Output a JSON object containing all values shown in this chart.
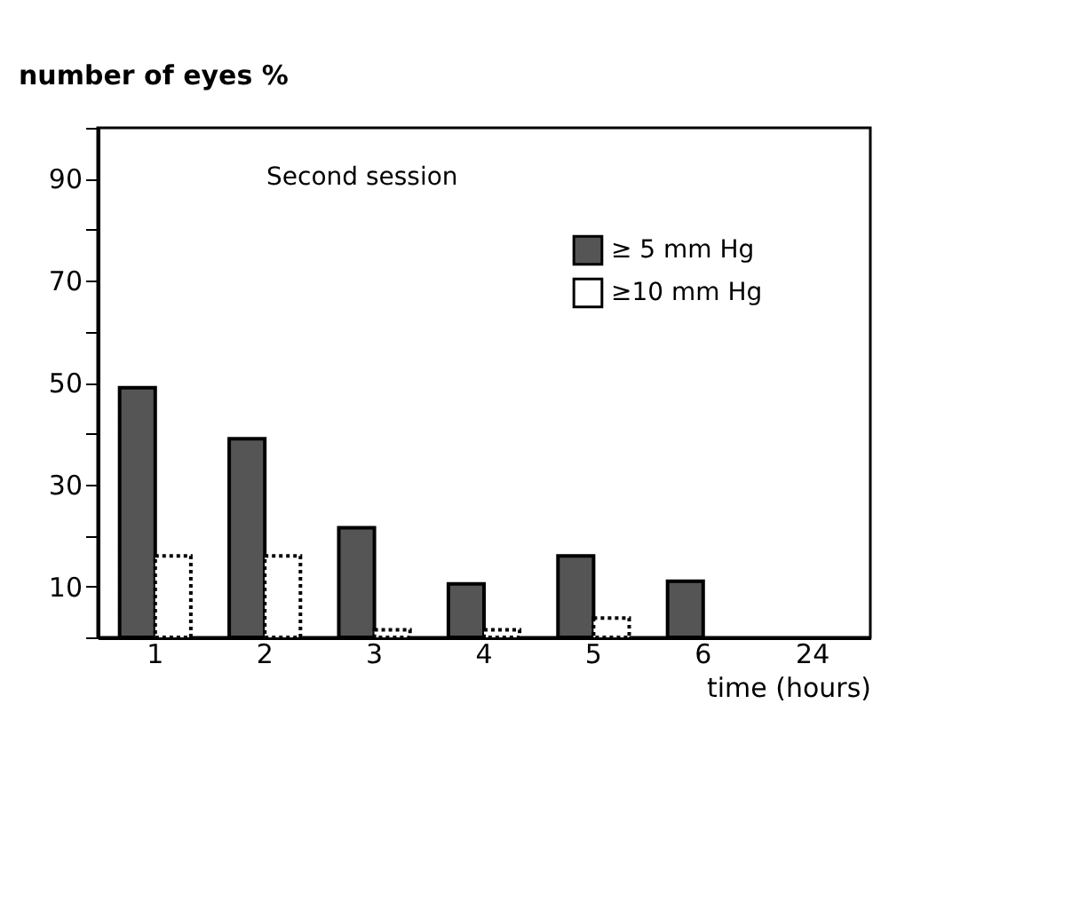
{
  "chart_data": {
    "type": "bar",
    "annotations": [
      "Second session"
    ],
    "ylabel": "number of eyes %",
    "xlabel": "time (hours)",
    "categories": [
      "1",
      "2",
      "3",
      "4",
      "5",
      "6",
      "24"
    ],
    "series": [
      {
        "name": "≥ 5 mm Hg",
        "color": "#555555",
        "values": [
          49,
          39,
          21.5,
          10.5,
          16,
          11,
          0
        ]
      },
      {
        "name": "≥10 mm Hg",
        "color": "#ffffff",
        "values": [
          16,
          16,
          1.5,
          1.5,
          3.8,
          0,
          0
        ]
      }
    ],
    "ylim": [
      0,
      100
    ],
    "yticks": [
      {
        "value": 0,
        "label": null
      },
      10,
      {
        "value": 20,
        "label": null
      },
      30,
      {
        "value": 40,
        "label": null
      },
      50,
      {
        "value": 60,
        "label": null
      },
      70,
      {
        "value": 80,
        "label": null
      },
      90,
      {
        "value": 100,
        "label": null
      }
    ],
    "grid": false,
    "legend": "top right"
  }
}
